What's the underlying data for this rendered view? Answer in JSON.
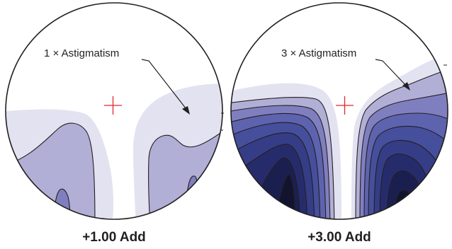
{
  "panels": [
    {
      "callout": "1 × Astigmatism",
      "caption": "+1.00 Add"
    },
    {
      "callout": "3 × Astigmatism",
      "caption": "+3.00 Add"
    }
  ],
  "colors": {
    "outline": "#231f20",
    "center_mark": "#e0262e",
    "levels": [
      "#e3e2f1",
      "#b1afd6",
      "#7f7fc0",
      "#5d63ae",
      "#454f9c",
      "#353d86",
      "#262c6b",
      "#1b1f50",
      "#12142f"
    ]
  }
}
